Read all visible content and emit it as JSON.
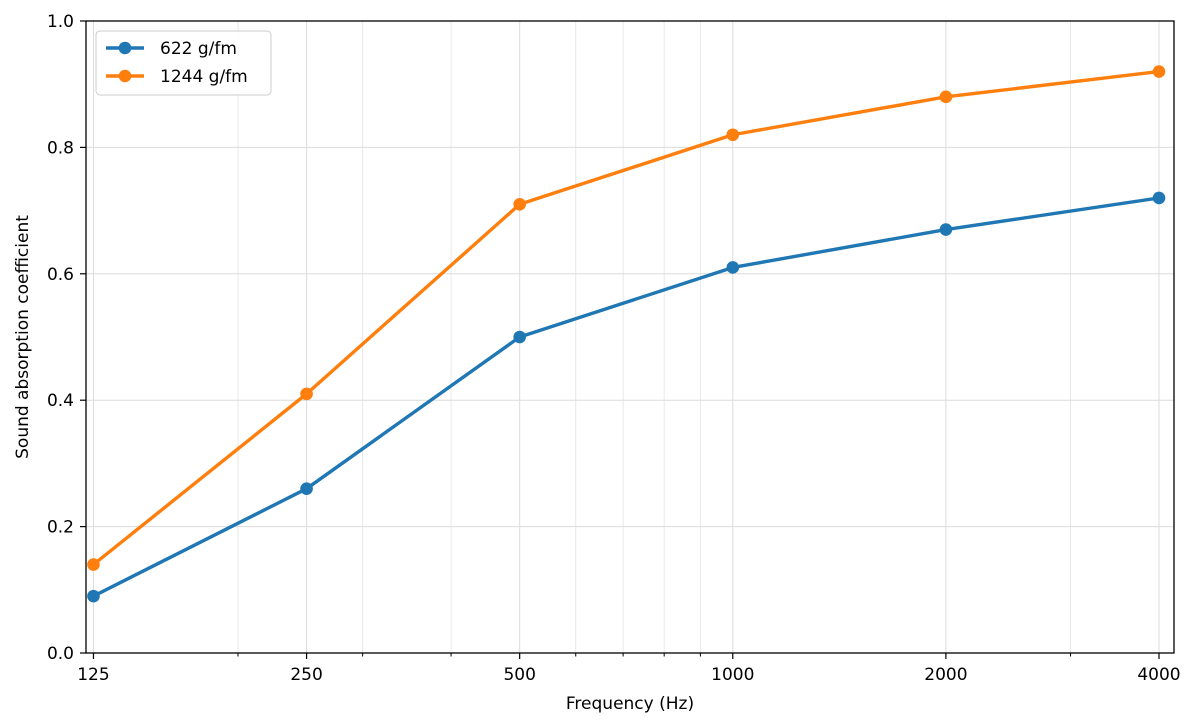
{
  "chart_data": {
    "type": "line",
    "xscale": "log2",
    "x": [
      125,
      250,
      500,
      1000,
      2000,
      4000
    ],
    "xticks": [
      "125",
      "250",
      "500",
      "1000",
      "2000",
      "4000"
    ],
    "xlim": [
      122,
      4200
    ],
    "ylim": [
      0.0,
      1.0
    ],
    "yticks": [
      "0.0",
      "0.2",
      "0.4",
      "0.6",
      "0.8",
      "1.0"
    ],
    "xlabel": "Frequency (Hz)",
    "ylabel": "Sound absorption coefficient",
    "grid": true,
    "legend_position": "top-left",
    "series": [
      {
        "name": "622 g/fm",
        "color": "#1f77b4",
        "values": [
          0.09,
          0.26,
          0.5,
          0.61,
          0.67,
          0.72
        ]
      },
      {
        "name": "1244 g/fm",
        "color": "#ff7f0e",
        "values": [
          0.14,
          0.41,
          0.71,
          0.82,
          0.88,
          0.92
        ]
      }
    ]
  }
}
